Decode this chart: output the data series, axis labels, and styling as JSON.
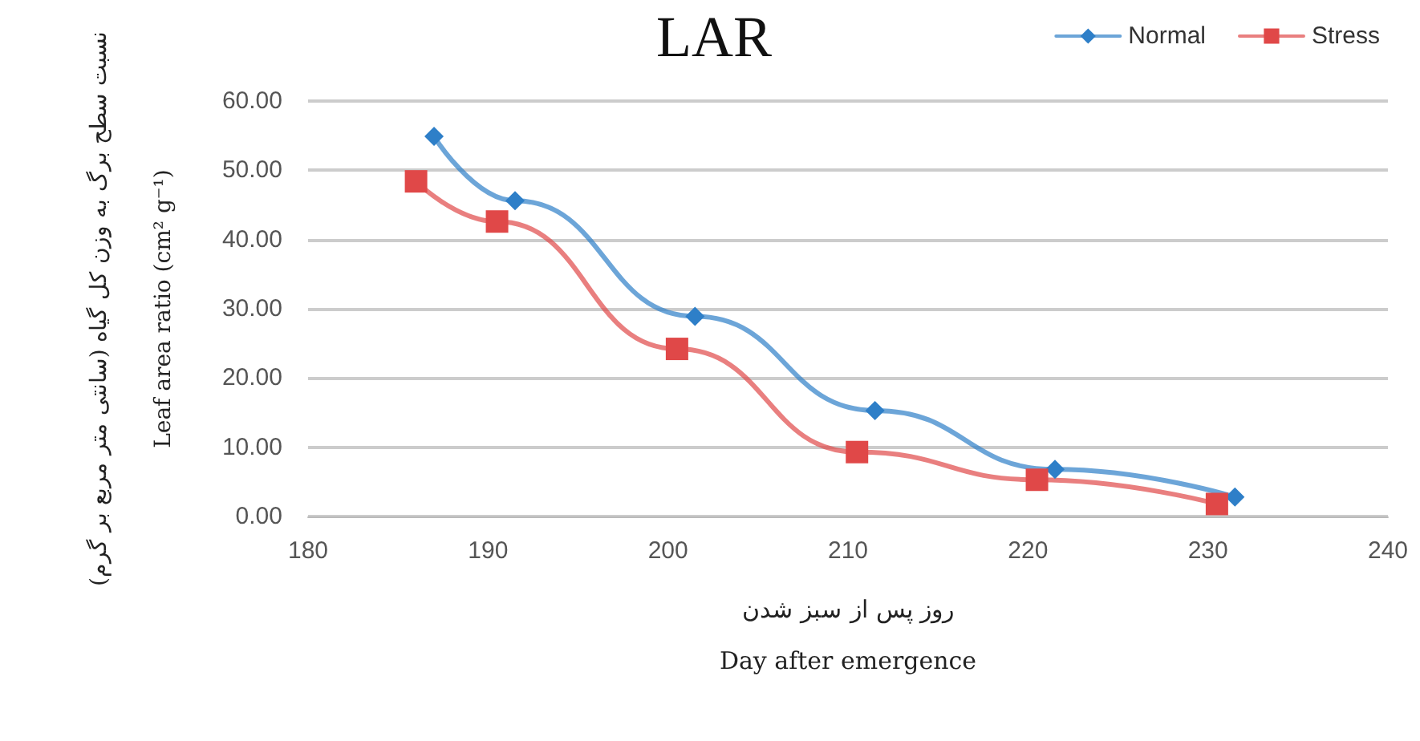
{
  "chart_data": {
    "type": "line",
    "title": "LAR",
    "xlabel": "روز پس از سبز شدن\nDay after emergence",
    "ylabel": "نسبت سطح برگ به وزن کل گیاه (سانتی متر مربع بر گرم)\nLeaf area ratio (cm² g⁻¹)",
    "series": [
      {
        "name": "Normal",
        "color": "#2e7fc8",
        "marker": "diamond",
        "x": [
          187,
          191.5,
          201.5,
          211.5,
          221.5,
          231.5
        ],
        "values": [
          54.9,
          45.6,
          28.9,
          15.3,
          6.8,
          2.8
        ]
      },
      {
        "name": "Stress",
        "color": "#e04848",
        "marker": "square",
        "x": [
          186,
          190.5,
          200.5,
          210.5,
          220.5,
          230.5
        ],
        "values": [
          48.4,
          42.6,
          24.2,
          9.3,
          5.3,
          1.8
        ]
      }
    ],
    "xlim": [
      180,
      240
    ],
    "xticks": [
      180,
      190,
      200,
      210,
      220,
      230,
      240
    ],
    "ylim": [
      0,
      60
    ],
    "yticks": [
      {
        "value": 0,
        "label": "0.00"
      },
      {
        "value": 10,
        "label": "10.00"
      },
      {
        "value": 20,
        "label": "20.00"
      },
      {
        "value": 30,
        "label": "30.00"
      },
      {
        "value": 40,
        "label": "40.00"
      },
      {
        "value": 50,
        "label": "50.00"
      },
      {
        "value": 60,
        "label": "60.00"
      }
    ],
    "grid": "y",
    "legend": "top right",
    "line_style": "solid"
  }
}
